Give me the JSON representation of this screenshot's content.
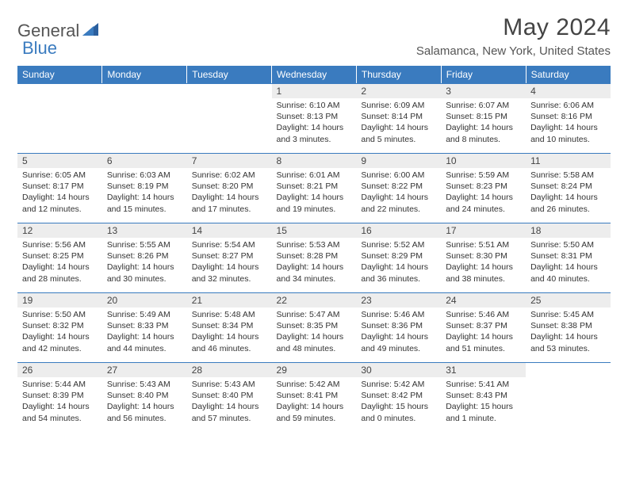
{
  "brand": {
    "part1": "General",
    "part2": "Blue"
  },
  "title": "May 2024",
  "location": "Salamanca, New York, United States",
  "colors": {
    "header_bg": "#3a7bbf",
    "header_text": "#ffffff",
    "daynum_bg": "#ededed",
    "rule": "#3a7bbf",
    "brand_accent": "#3a7bbf",
    "text": "#333333"
  },
  "typography": {
    "title_fontsize": 30,
    "location_fontsize": 15,
    "header_fontsize": 12,
    "body_fontsize": 10.5
  },
  "weekdays": [
    "Sunday",
    "Monday",
    "Tuesday",
    "Wednesday",
    "Thursday",
    "Friday",
    "Saturday"
  ],
  "weeks": [
    [
      null,
      null,
      null,
      {
        "n": "1",
        "sr": "6:10 AM",
        "ss": "8:13 PM",
        "dl": "14 hours and 3 minutes."
      },
      {
        "n": "2",
        "sr": "6:09 AM",
        "ss": "8:14 PM",
        "dl": "14 hours and 5 minutes."
      },
      {
        "n": "3",
        "sr": "6:07 AM",
        "ss": "8:15 PM",
        "dl": "14 hours and 8 minutes."
      },
      {
        "n": "4",
        "sr": "6:06 AM",
        "ss": "8:16 PM",
        "dl": "14 hours and 10 minutes."
      }
    ],
    [
      {
        "n": "5",
        "sr": "6:05 AM",
        "ss": "8:17 PM",
        "dl": "14 hours and 12 minutes."
      },
      {
        "n": "6",
        "sr": "6:03 AM",
        "ss": "8:19 PM",
        "dl": "14 hours and 15 minutes."
      },
      {
        "n": "7",
        "sr": "6:02 AM",
        "ss": "8:20 PM",
        "dl": "14 hours and 17 minutes."
      },
      {
        "n": "8",
        "sr": "6:01 AM",
        "ss": "8:21 PM",
        "dl": "14 hours and 19 minutes."
      },
      {
        "n": "9",
        "sr": "6:00 AM",
        "ss": "8:22 PM",
        "dl": "14 hours and 22 minutes."
      },
      {
        "n": "10",
        "sr": "5:59 AM",
        "ss": "8:23 PM",
        "dl": "14 hours and 24 minutes."
      },
      {
        "n": "11",
        "sr": "5:58 AM",
        "ss": "8:24 PM",
        "dl": "14 hours and 26 minutes."
      }
    ],
    [
      {
        "n": "12",
        "sr": "5:56 AM",
        "ss": "8:25 PM",
        "dl": "14 hours and 28 minutes."
      },
      {
        "n": "13",
        "sr": "5:55 AM",
        "ss": "8:26 PM",
        "dl": "14 hours and 30 minutes."
      },
      {
        "n": "14",
        "sr": "5:54 AM",
        "ss": "8:27 PM",
        "dl": "14 hours and 32 minutes."
      },
      {
        "n": "15",
        "sr": "5:53 AM",
        "ss": "8:28 PM",
        "dl": "14 hours and 34 minutes."
      },
      {
        "n": "16",
        "sr": "5:52 AM",
        "ss": "8:29 PM",
        "dl": "14 hours and 36 minutes."
      },
      {
        "n": "17",
        "sr": "5:51 AM",
        "ss": "8:30 PM",
        "dl": "14 hours and 38 minutes."
      },
      {
        "n": "18",
        "sr": "5:50 AM",
        "ss": "8:31 PM",
        "dl": "14 hours and 40 minutes."
      }
    ],
    [
      {
        "n": "19",
        "sr": "5:50 AM",
        "ss": "8:32 PM",
        "dl": "14 hours and 42 minutes."
      },
      {
        "n": "20",
        "sr": "5:49 AM",
        "ss": "8:33 PM",
        "dl": "14 hours and 44 minutes."
      },
      {
        "n": "21",
        "sr": "5:48 AM",
        "ss": "8:34 PM",
        "dl": "14 hours and 46 minutes."
      },
      {
        "n": "22",
        "sr": "5:47 AM",
        "ss": "8:35 PM",
        "dl": "14 hours and 48 minutes."
      },
      {
        "n": "23",
        "sr": "5:46 AM",
        "ss": "8:36 PM",
        "dl": "14 hours and 49 minutes."
      },
      {
        "n": "24",
        "sr": "5:46 AM",
        "ss": "8:37 PM",
        "dl": "14 hours and 51 minutes."
      },
      {
        "n": "25",
        "sr": "5:45 AM",
        "ss": "8:38 PM",
        "dl": "14 hours and 53 minutes."
      }
    ],
    [
      {
        "n": "26",
        "sr": "5:44 AM",
        "ss": "8:39 PM",
        "dl": "14 hours and 54 minutes."
      },
      {
        "n": "27",
        "sr": "5:43 AM",
        "ss": "8:40 PM",
        "dl": "14 hours and 56 minutes."
      },
      {
        "n": "28",
        "sr": "5:43 AM",
        "ss": "8:40 PM",
        "dl": "14 hours and 57 minutes."
      },
      {
        "n": "29",
        "sr": "5:42 AM",
        "ss": "8:41 PM",
        "dl": "14 hours and 59 minutes."
      },
      {
        "n": "30",
        "sr": "5:42 AM",
        "ss": "8:42 PM",
        "dl": "15 hours and 0 minutes."
      },
      {
        "n": "31",
        "sr": "5:41 AM",
        "ss": "8:43 PM",
        "dl": "15 hours and 1 minute."
      },
      null
    ]
  ],
  "labels": {
    "sunrise": "Sunrise:",
    "sunset": "Sunset:",
    "daylight": "Daylight:"
  }
}
